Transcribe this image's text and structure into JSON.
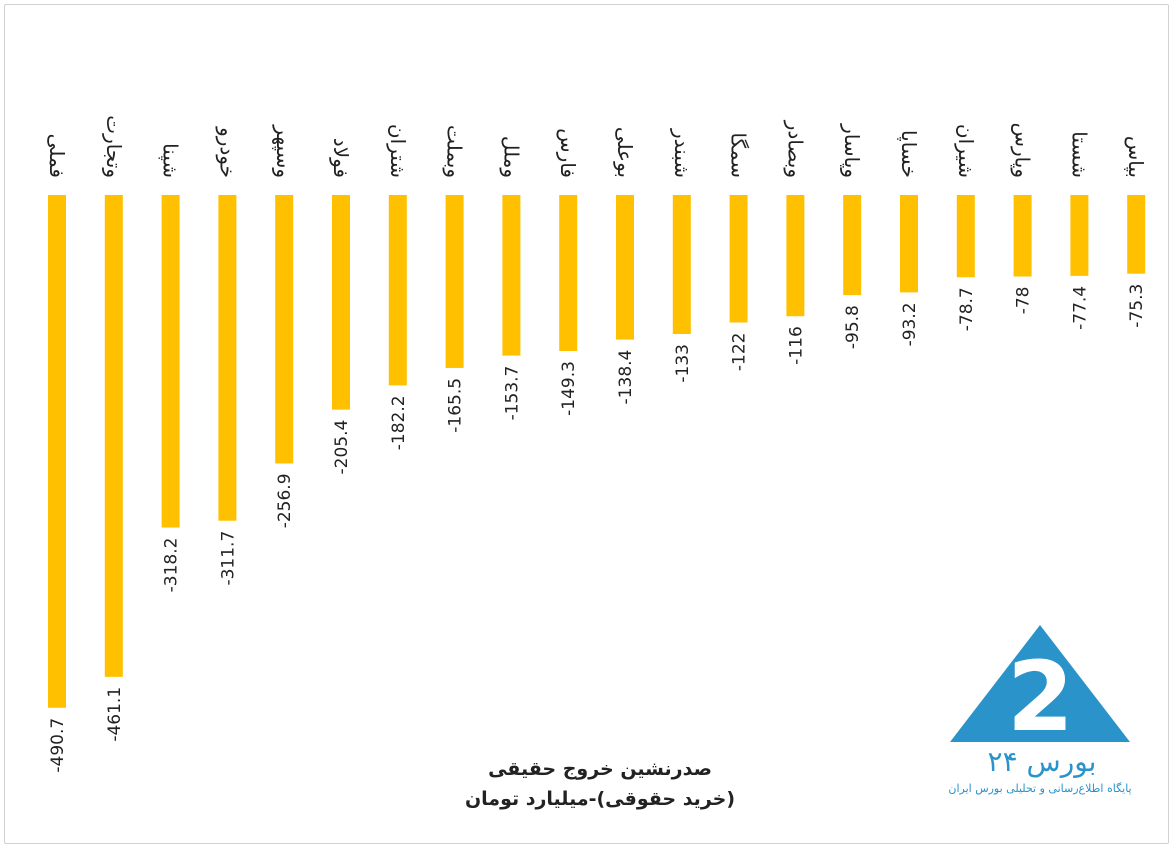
{
  "chart_data": {
    "type": "bar",
    "orientation": "vertical-negative",
    "title_lines": [
      "صدرنشین خروج حقیقی",
      "(خرید حقوقی)-میلیارد تومان"
    ],
    "categories": [
      "فملی",
      "وتجارت",
      "شپنا",
      "خودرو",
      "وسپهر",
      "فولاد",
      "شتران",
      "وبملت",
      "وملل",
      "فارس",
      "بوعلی",
      "شبندر",
      "سمگا",
      "وبصادر",
      "وپاسار",
      "خساپا",
      "شیران",
      "وپارس",
      "شستا",
      "بپاس"
    ],
    "values": [
      -490.7,
      -461.1,
      -318.2,
      -311.7,
      -256.9,
      -205.4,
      -182.2,
      -165.5,
      -153.7,
      -149.3,
      -138.4,
      -133,
      -122,
      -116,
      -95.8,
      -93.2,
      -78.7,
      -78,
      -77.4,
      -75.3
    ],
    "value_labels": [
      "-490.7",
      "-461.1",
      "-318.2",
      "-311.7",
      "-256.9",
      "-205.4",
      "-182.2",
      "-165.5",
      "-153.7",
      "-149.3",
      "-138.4",
      "-133",
      "-122",
      "-116",
      "-95.8",
      "-93.2",
      "-78.7",
      "-78",
      "-77.4",
      "-75.3"
    ],
    "bar_color": "#FFC000",
    "grid": false,
    "legend": "none"
  },
  "logo": {
    "number": "24",
    "word": "بورس ۲۴",
    "tagline": "پایگاه اطلاع‌رسانی و تحلیلی بورس ایران",
    "color": "#2a93c9",
    "icon": "bourse24-triangle-logo"
  }
}
